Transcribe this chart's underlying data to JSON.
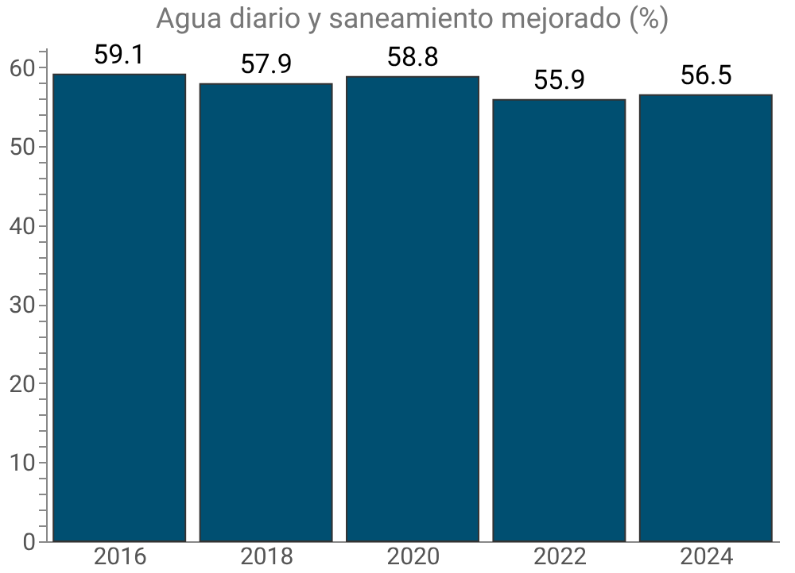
{
  "chart_data": {
    "type": "bar",
    "title": "Agua diario y saneamiento mejorado (%)",
    "categories": [
      "2016",
      "2018",
      "2020",
      "2022",
      "2024"
    ],
    "values": [
      59.1,
      57.9,
      58.8,
      55.9,
      56.5
    ],
    "color": "#004f71",
    "data_labels": true,
    "ylim": [
      0,
      62.5
    ],
    "yticks": [
      0,
      {
        "value": 2,
        "label": null
      },
      {
        "value": 4,
        "label": null
      },
      {
        "value": 6,
        "label": null
      },
      {
        "value": 8,
        "label": null
      },
      10,
      {
        "value": 12,
        "label": null
      },
      {
        "value": 14,
        "label": null
      },
      {
        "value": 16,
        "label": null
      },
      {
        "value": 18,
        "label": null
      },
      20,
      {
        "value": 22,
        "label": null
      },
      {
        "value": 24,
        "label": null
      },
      {
        "value": 26,
        "label": null
      },
      {
        "value": 28,
        "label": null
      },
      30,
      {
        "value": 32,
        "label": null
      },
      {
        "value": 34,
        "label": null
      },
      {
        "value": 36,
        "label": null
      },
      {
        "value": 38,
        "label": null
      },
      40,
      {
        "value": 42,
        "label": null
      },
      {
        "value": 44,
        "label": null
      },
      {
        "value": 46,
        "label": null
      },
      {
        "value": 48,
        "label": null
      },
      50,
      {
        "value": 52,
        "label": null
      },
      {
        "value": 54,
        "label": null
      },
      {
        "value": 56,
        "label": null
      },
      {
        "value": 58,
        "label": null
      },
      60,
      {
        "value": 62,
        "label": null
      }
    ],
    "grid": false
  }
}
